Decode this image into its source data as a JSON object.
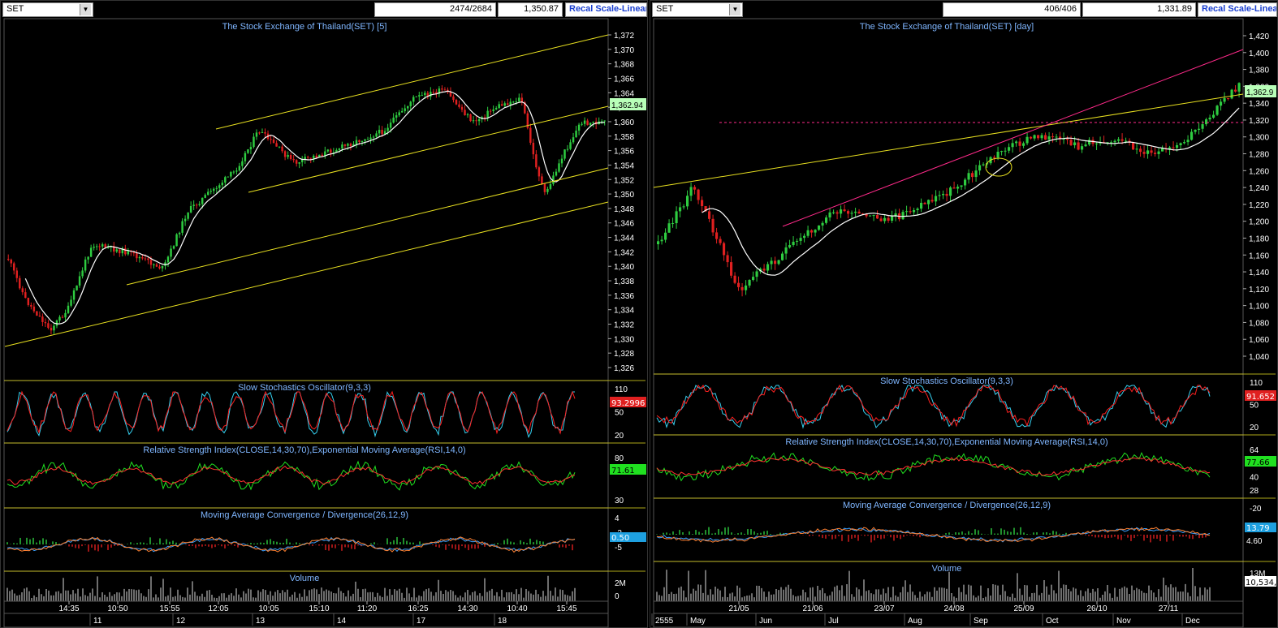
{
  "left": {
    "symbol": "SET",
    "bar_count": "2474/2684",
    "last_price": "1,350.87",
    "recal_label": "Recal Scale-Linear",
    "title": "The Stock Exchange of Thailand(SET) [5]",
    "price_label": "1,362.94",
    "price_ticks": [
      "1,372",
      "1,370",
      "1,368",
      "1,366",
      "1,364",
      "1,362",
      "1,360",
      "1,358",
      "1,356",
      "1,354",
      "1,352",
      "1,350",
      "1,348",
      "1,346",
      "1,344",
      "1,342",
      "1,340",
      "1,338",
      "1,336",
      "1,334",
      "1,332",
      "1,330",
      "1,328",
      "1,326"
    ],
    "time_labels": [
      "14:35",
      "10:50",
      "15:55",
      "12:05",
      "10:05",
      "15:10",
      "11:20",
      "16:25",
      "14:30",
      "10:40",
      "15:45"
    ],
    "day_labels": [
      "11",
      "12",
      "13",
      "14",
      "17",
      "18"
    ],
    "stoch_title": "Slow Stochastics Oscillator(9,3,3)",
    "stoch_ticks": [
      "110",
      "50",
      "20"
    ],
    "stoch_label": "93.2996",
    "rsi_title": "Relative Strength Index(CLOSE,14,30,70),Exponential Moving Average(RSI,14,0)",
    "rsi_ticks": [
      "80",
      "30"
    ],
    "rsi_label": "71.61",
    "macd_title": "Moving Average Convergence / Divergence(26,12,9)",
    "macd_ticks": [
      "4",
      "-2",
      "-5"
    ],
    "macd_label": "0.50",
    "vol_title": "Volume",
    "vol_ticks": [
      "2M",
      "0"
    ]
  },
  "right": {
    "symbol": "SET",
    "bar_count": "406/406",
    "last_price": "1,331.89",
    "recal_label": "Recal Scale-Linear",
    "title": "The Stock Exchange of Thailand(SET) [day]",
    "price_label": "1,362.9",
    "price_ticks": [
      "1,420",
      "1,400",
      "1,380",
      "1,360",
      "1,340",
      "1,320",
      "1,300",
      "1,280",
      "1,260",
      "1,240",
      "1,220",
      "1,200",
      "1,180",
      "1,160",
      "1,140",
      "1,120",
      "1,100",
      "1,080",
      "1,060",
      "1,040"
    ],
    "date_labels": [
      "21/05",
      "21/06",
      "23/07",
      "24/08",
      "25/09",
      "26/10",
      "27/11"
    ],
    "month_labels": [
      "2555",
      "May",
      "Jun",
      "Jul",
      "Aug",
      "Sep",
      "Oct",
      "Nov",
      "Dec"
    ],
    "stoch_title": "Slow Stochastics Oscillator(9,3,3)",
    "stoch_ticks": [
      "110",
      "50",
      "20"
    ],
    "stoch_label": "91.652",
    "rsi_title": "Relative Strength Index(CLOSE,14,30,70),Exponential Moving Average(RSI,14,0)",
    "rsi_ticks": [
      "64",
      "52",
      "40",
      "28"
    ],
    "rsi_label": "77.66",
    "macd_title": "Moving Average Convergence / Divergence(26,12,9)",
    "macd_ticks": [
      "-20"
    ],
    "macd_label": "13.79",
    "macd_label2": "4.60",
    "vol_title": "Volume",
    "vol_ticks": [
      "13M"
    ],
    "vol_label": "10,534,"
  },
  "colors": {
    "up": "#2ecc40",
    "down": "#e02020",
    "trend": "#e8e020",
    "ma": "#ffffff",
    "pink": "#ff2a8a",
    "stoch_k": "#35d0f0",
    "stoch_d": "#ff2020",
    "rsi": "#20e020",
    "rsi_ema": "#ff3030",
    "macd": "#3aa0ff",
    "signal": "#ff8030",
    "title": "#7fb6ff"
  },
  "chart_data": [
    {
      "type": "line",
      "title": "The Stock Exchange of Thailand(SET) [5]",
      "xlabel": "",
      "ylabel": "",
      "ylim": [
        1325,
        1373
      ],
      "x": [
        "14:35",
        "10:50",
        "15:55",
        "12:05",
        "10:05",
        "15:10",
        "11:20",
        "16:25",
        "14:30",
        "10:40",
        "15:45"
      ],
      "series": [
        {
          "values": [
            1333,
            1344,
            1340,
            1350,
            1358,
            1354,
            1357,
            1362,
            1359,
            1351,
            1361
          ]
        }
      ]
    },
    {
      "type": "line",
      "title": "The Stock Exchange of Thailand(SET) [day]",
      "xlabel": "",
      "ylabel": "",
      "ylim": [
        1030,
        1430
      ],
      "x": [
        "21/05",
        "21/06",
        "23/07",
        "24/08",
        "25/09",
        "26/10",
        "27/11"
      ],
      "series": [
        {
          "values": [
            1200,
            1140,
            1200,
            1240,
            1300,
            1285,
            1362
          ]
        }
      ]
    }
  ]
}
